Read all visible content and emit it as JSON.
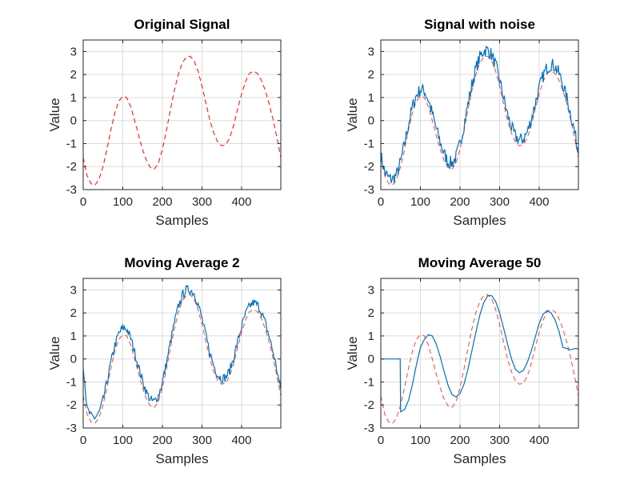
{
  "colors": {
    "original": "#ff0000",
    "processed": "#0072bd",
    "grid": "#dcdcdc",
    "axes": "#262626"
  },
  "chart_data": [
    {
      "type": "line",
      "title": "Original Signal",
      "xlabel": "Samples",
      "ylabel": "Value",
      "xlim": [
        0,
        499
      ],
      "ylim": [
        -3,
        3.5
      ],
      "xticks": [
        "0",
        "100",
        "200",
        "300",
        "400"
      ],
      "yticks": [
        "-3",
        "-2",
        "-1",
        "0",
        "1",
        "2",
        "3"
      ],
      "grid": true,
      "series": [
        {
          "style": "dashed",
          "color": "#ff0000",
          "x": [
            0,
            10,
            20,
            30,
            40,
            50,
            60,
            70,
            80,
            90,
            100,
            110,
            120,
            130,
            140,
            150,
            160,
            170,
            180,
            190,
            200,
            210,
            220,
            230,
            240,
            250,
            260,
            270,
            280,
            290,
            300,
            310,
            320,
            330,
            340,
            350,
            360,
            370,
            380,
            390,
            400,
            410,
            420,
            430,
            440,
            450,
            460,
            470,
            480,
            490,
            499
          ],
          "y": [
            -1.6,
            -2.4,
            -2.75,
            -2.8,
            -2.55,
            -2.0,
            -1.25,
            -0.4,
            0.35,
            0.85,
            1.05,
            1.0,
            0.6,
            0.0,
            -0.65,
            -1.25,
            -1.75,
            -2.05,
            -2.1,
            -1.85,
            -1.25,
            -0.45,
            0.45,
            1.3,
            2.0,
            2.5,
            2.75,
            2.8,
            2.6,
            2.15,
            1.5,
            0.75,
            0.0,
            -0.55,
            -0.95,
            -1.1,
            -1.05,
            -0.75,
            -0.2,
            0.5,
            1.15,
            1.7,
            2.05,
            2.15,
            2.05,
            1.75,
            1.3,
            0.7,
            0.0,
            -0.8,
            -1.6
          ]
        }
      ]
    },
    {
      "type": "line",
      "title": "Signal with noise",
      "xlabel": "Samples",
      "ylabel": "Value",
      "xlim": [
        0,
        499
      ],
      "ylim": [
        -3,
        3.5
      ],
      "xticks": [
        "0",
        "100",
        "200",
        "300",
        "400"
      ],
      "yticks": [
        "-3",
        "-2",
        "-1",
        "0",
        "1",
        "2",
        "3"
      ],
      "grid": true,
      "noise_amplitude": 0.3,
      "series": [
        {
          "style": "dashed",
          "color": "#ff0000",
          "source": "original"
        },
        {
          "style": "solid",
          "color": "#0072bd",
          "x": [
            0,
            10,
            20,
            30,
            40,
            50,
            60,
            70,
            80,
            90,
            100,
            110,
            120,
            130,
            140,
            150,
            160,
            170,
            180,
            190,
            200,
            210,
            220,
            230,
            240,
            250,
            260,
            270,
            280,
            290,
            300,
            310,
            320,
            330,
            340,
            350,
            360,
            370,
            380,
            390,
            400,
            410,
            420,
            430,
            440,
            450,
            460,
            470,
            480,
            490,
            499
          ],
          "y": [
            -1.5,
            -2.25,
            -2.5,
            -2.55,
            -2.35,
            -1.8,
            -1.0,
            -0.15,
            0.6,
            1.1,
            1.35,
            1.3,
            0.9,
            0.3,
            -0.35,
            -0.95,
            -1.45,
            -1.8,
            -1.85,
            -1.6,
            -1.0,
            -0.2,
            0.7,
            1.55,
            2.25,
            2.75,
            3.05,
            3.05,
            2.85,
            2.4,
            1.75,
            1.0,
            0.25,
            -0.3,
            -0.7,
            -0.85,
            -0.8,
            -0.5,
            0.05,
            0.75,
            1.4,
            1.95,
            2.3,
            2.45,
            2.35,
            2.05,
            1.55,
            0.95,
            0.25,
            -0.55,
            -1.4
          ]
        }
      ]
    },
    {
      "type": "line",
      "title": "Moving Average 2",
      "xlabel": "Samples",
      "ylabel": "Value",
      "xlim": [
        0,
        499
      ],
      "ylim": [
        -3,
        3.5
      ],
      "xticks": [
        "0",
        "100",
        "200",
        "300",
        "400"
      ],
      "yticks": [
        "-3",
        "-2",
        "-1",
        "0",
        "1",
        "2",
        "3"
      ],
      "grid": true,
      "noise_amplitude": 0.2,
      "series": [
        {
          "style": "dashed",
          "color": "#ff0000",
          "source": "original"
        },
        {
          "style": "solid",
          "color": "#0072bd",
          "x": [
            0,
            10,
            20,
            30,
            40,
            50,
            60,
            70,
            80,
            90,
            100,
            110,
            120,
            130,
            140,
            150,
            160,
            170,
            180,
            190,
            200,
            210,
            220,
            230,
            240,
            250,
            260,
            270,
            280,
            290,
            300,
            310,
            320,
            330,
            340,
            350,
            360,
            370,
            380,
            390,
            400,
            410,
            420,
            430,
            440,
            450,
            460,
            470,
            480,
            490,
            499
          ],
          "y": [
            -0.2,
            -2.2,
            -2.5,
            -2.55,
            -2.35,
            -1.8,
            -1.0,
            -0.15,
            0.6,
            1.1,
            1.35,
            1.3,
            0.9,
            0.3,
            -0.35,
            -0.95,
            -1.45,
            -1.8,
            -1.85,
            -1.6,
            -1.0,
            -0.2,
            0.7,
            1.55,
            2.25,
            2.75,
            3.0,
            3.0,
            2.85,
            2.4,
            1.75,
            1.0,
            0.25,
            -0.3,
            -0.7,
            -0.85,
            -0.8,
            -0.5,
            0.05,
            0.75,
            1.4,
            1.95,
            2.3,
            2.45,
            2.35,
            2.05,
            1.55,
            0.95,
            0.25,
            -0.55,
            -1.4
          ]
        }
      ]
    },
    {
      "type": "line",
      "title": "Moving Average 50",
      "xlabel": "Samples",
      "ylabel": "Value",
      "xlim": [
        0,
        499
      ],
      "ylim": [
        -3,
        3.5
      ],
      "xticks": [
        "0",
        "100",
        "200",
        "300",
        "400"
      ],
      "yticks": [
        "-3",
        "-2",
        "-1",
        "0",
        "1",
        "2",
        "3"
      ],
      "grid": true,
      "series": [
        {
          "style": "dashed",
          "color": "#ff0000",
          "source": "original"
        },
        {
          "style": "solid",
          "color": "#0072bd",
          "x": [
            0,
            10,
            20,
            30,
            40,
            49,
            50,
            60,
            70,
            80,
            90,
            100,
            110,
            120,
            130,
            140,
            150,
            160,
            170,
            180,
            190,
            200,
            210,
            220,
            230,
            240,
            250,
            260,
            270,
            280,
            290,
            300,
            310,
            320,
            330,
            340,
            350,
            360,
            370,
            380,
            390,
            400,
            410,
            420,
            430,
            440,
            450,
            460,
            470,
            480,
            490,
            499
          ],
          "y": [
            0,
            0,
            0,
            0,
            0,
            0,
            -2.3,
            -2.2,
            -1.8,
            -1.1,
            -0.25,
            0.5,
            0.85,
            1.05,
            1.0,
            0.65,
            0.1,
            -0.55,
            -1.15,
            -1.55,
            -1.65,
            -1.5,
            -1.1,
            -0.45,
            0.35,
            1.15,
            1.9,
            2.45,
            2.75,
            2.75,
            2.5,
            2.0,
            1.35,
            0.65,
            0.0,
            -0.45,
            -0.6,
            -0.5,
            -0.15,
            0.35,
            0.95,
            1.55,
            1.95,
            2.1,
            2.0,
            1.7,
            1.2,
            0.5,
            0.45,
            0.4,
            0.45,
            0.45
          ]
        }
      ]
    }
  ]
}
